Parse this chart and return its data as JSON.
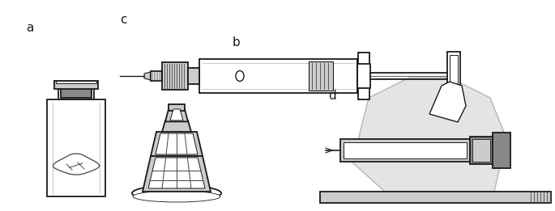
{
  "background_color": "#ffffff",
  "label_a": "a",
  "label_b": "b",
  "label_c": "c",
  "label_d": "d",
  "label_fontsize": 11,
  "label_color": "#222222",
  "line_color": "#1a1a1a",
  "gray_light": "#cccccc",
  "gray_mid": "#888888",
  "gray_dark": "#444444",
  "figsize": [
    6.85,
    2.61
  ],
  "dpi": 100
}
